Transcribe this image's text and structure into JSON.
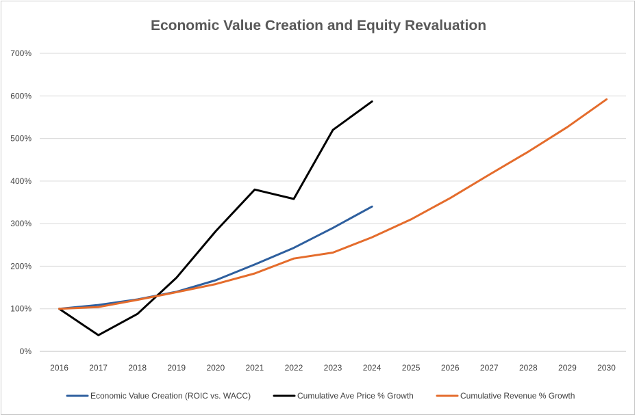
{
  "chart_data": {
    "type": "line",
    "title": "Economic Value Creation and Equity Revaluation",
    "xlabel": "",
    "ylabel": "",
    "x": [
      "2016",
      "2017",
      "2018",
      "2019",
      "2020",
      "2021",
      "2022",
      "2023",
      "2024",
      "2025",
      "2026",
      "2027",
      "2028",
      "2029",
      "2030"
    ],
    "y_ticks": [
      "0%",
      "100%",
      "200%",
      "300%",
      "400%",
      "500%",
      "600%",
      "700%"
    ],
    "ylim": [
      0,
      700
    ],
    "grid": true,
    "legend_position": "bottom",
    "series": [
      {
        "name": "Economic Value Creation (ROIC vs. WACC)",
        "color": "#2e5f9e",
        "values": [
          100,
          109,
          122,
          140,
          167,
          204,
          243,
          290,
          340,
          null,
          null,
          null,
          null,
          null,
          null
        ]
      },
      {
        "name": "Cumulative Ave Price % Growth",
        "color": "#000000",
        "values": [
          100,
          38,
          88,
          173,
          282,
          380,
          358,
          520,
          587,
          null,
          null,
          null,
          null,
          null,
          null
        ]
      },
      {
        "name": "Cumulative Revenue % Growth",
        "color": "#e46c2c",
        "values": [
          100,
          104,
          121,
          139,
          158,
          183,
          218,
          232,
          268,
          310,
          360,
          415,
          469,
          527,
          592
        ]
      }
    ]
  }
}
